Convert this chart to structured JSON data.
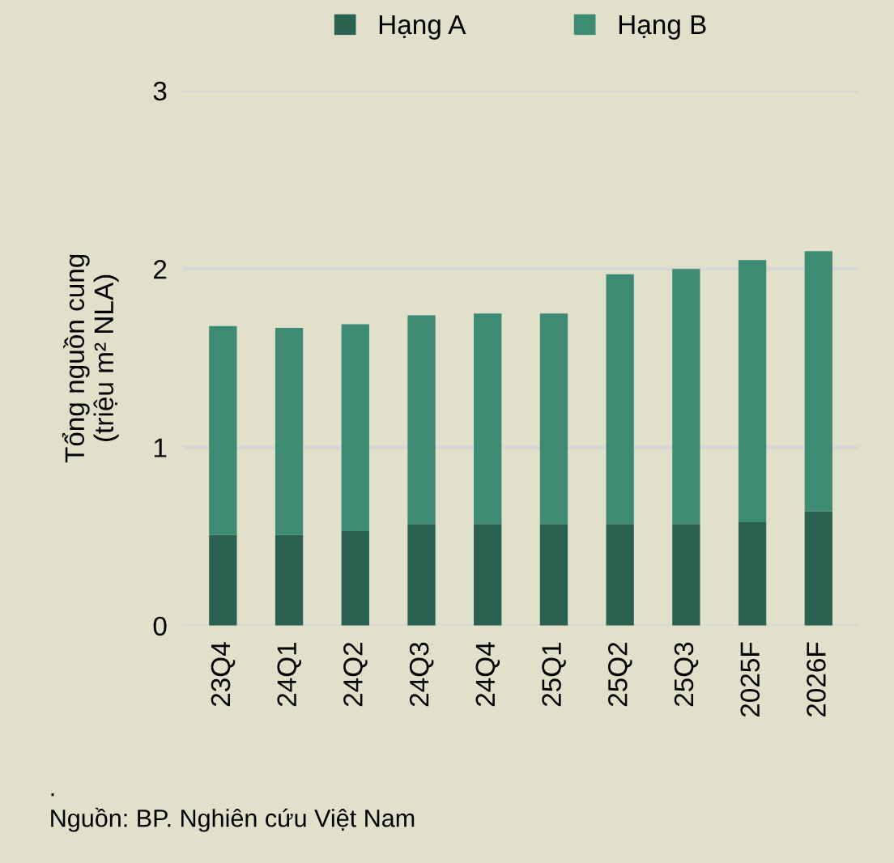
{
  "chart_data": {
    "type": "bar",
    "stacked": true,
    "ylabel": "Tổng nguồn cung\n(triệu m² NLA)",
    "categories": [
      "23Q4",
      "24Q1",
      "24Q2",
      "24Q3",
      "24Q4",
      "25Q1",
      "25Q2",
      "25Q3",
      "2025F",
      "2026F"
    ],
    "series": [
      {
        "name": "Hạng A",
        "color": "#2a6150",
        "values": [
          0.51,
          0.51,
          0.53,
          0.57,
          0.57,
          0.57,
          0.57,
          0.57,
          0.58,
          0.64
        ]
      },
      {
        "name": "Hạng B",
        "color": "#3d8b73",
        "values": [
          1.17,
          1.16,
          1.16,
          1.17,
          1.18,
          1.18,
          1.4,
          1.43,
          1.47,
          1.46
        ]
      }
    ],
    "ylim": [
      0,
      3
    ],
    "yticks": [
      0,
      1,
      2,
      3
    ],
    "grid": "y",
    "legend": "top",
    "annotations": [
      ".",
      "Nguồn: BP. Nghiên cứu Việt Nam"
    ]
  }
}
